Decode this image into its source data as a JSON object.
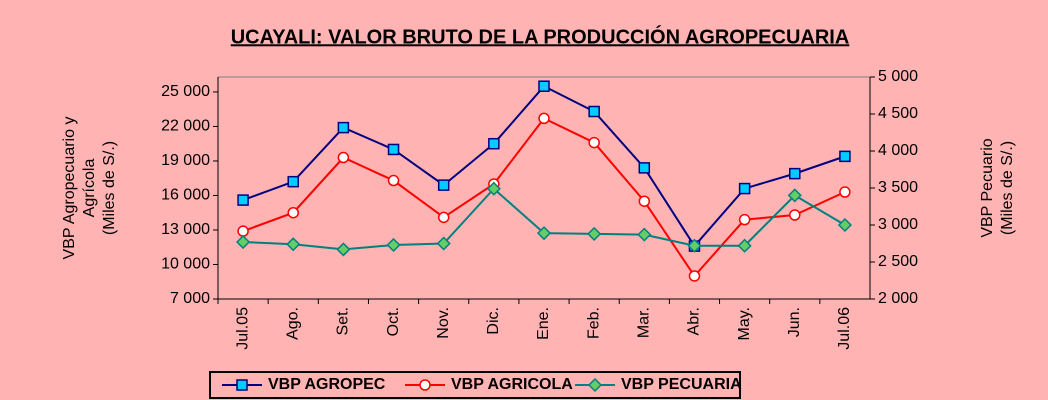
{
  "chart_data": {
    "type": "line",
    "title": "UCAYALI: VALOR BRUTO DE LA PRODUCCIÓN AGROPECUARIA",
    "ylabel": [
      "VBP Agropecuario y",
      "Agrícola",
      "(Miles de S/.)"
    ],
    "y2label": [
      "VBP Pecuario",
      "(Miles de S/.)"
    ],
    "categories": [
      "Jul.05",
      "Ago.",
      "Set.",
      "Oct.",
      "Nov.",
      "Dic.",
      "Ene.",
      "Feb.",
      "Mar.",
      "Abr.",
      "May.",
      "Jun.",
      "Jul.06"
    ],
    "ylim": [
      7000,
      26300
    ],
    "yticks": [
      {
        "value": 7000,
        "label": "7 000"
      },
      {
        "value": 10000,
        "label": "10 000"
      },
      {
        "value": 13000,
        "label": "13 000"
      },
      {
        "value": 16000,
        "label": "16 000"
      },
      {
        "value": 19000,
        "label": "19 000"
      },
      {
        "value": 22000,
        "label": "22 000"
      },
      {
        "value": 25000,
        "label": "25 000"
      }
    ],
    "y2lim": [
      2000,
      5000
    ],
    "y2ticks": [
      {
        "value": 2000,
        "label": "2 000"
      },
      {
        "value": 2500,
        "label": "2 500"
      },
      {
        "value": 3000,
        "label": "3 000"
      },
      {
        "value": 3500,
        "label": "3 500"
      },
      {
        "value": 4000,
        "label": "4 000"
      },
      {
        "value": 4500,
        "label": "4 500"
      },
      {
        "value": 5000,
        "label": "5 000"
      }
    ],
    "legend": "bottom",
    "series": [
      {
        "name": "VBP AGROPEC",
        "color": "#000080",
        "marker_color": "#00ccff",
        "marker": "square",
        "values": [
          15600,
          17200,
          21900,
          20000,
          16900,
          20500,
          25500,
          23300,
          18400,
          11600,
          16600,
          17900,
          19400
        ]
      },
      {
        "name": "VBP AGRICOLA",
        "color": "#ff0000",
        "marker_color": "#ffffff",
        "marker": "circle",
        "values": [
          12900,
          14500,
          19300,
          17300,
          14100,
          17000,
          22700,
          20600,
          15500,
          9000,
          13900,
          14300,
          16300
        ]
      },
      {
        "name": "VBP PECUARIA",
        "color": "#008080",
        "marker_color": "#66cc66",
        "marker": "diamond",
        "axis": "y2",
        "values": [
          2770,
          2740,
          2670,
          2730,
          2750,
          3490,
          2890,
          2880,
          2870,
          2720,
          2720,
          3400,
          3000
        ]
      }
    ]
  }
}
